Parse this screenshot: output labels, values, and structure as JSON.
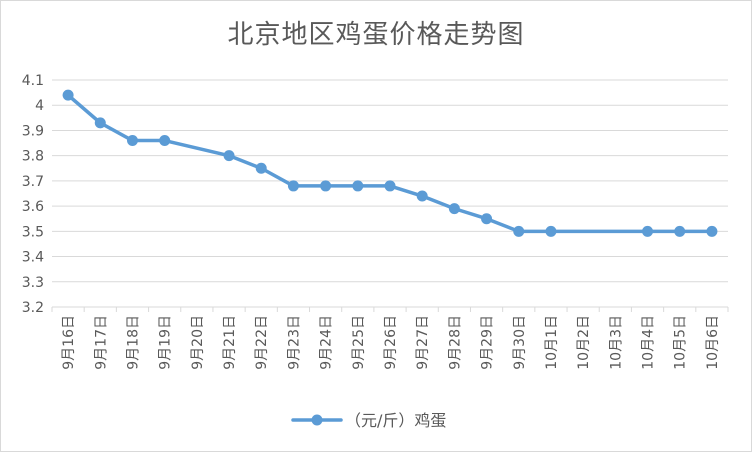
{
  "chart_data": {
    "type": "line",
    "title": "北京地区鸡蛋价格走势图",
    "xlabel": "",
    "ylabel": "",
    "ylim": [
      3.2,
      4.1
    ],
    "yticks": [
      "3.2",
      "3.3",
      "3.4",
      "3.5",
      "3.6",
      "3.7",
      "3.8",
      "3.9",
      "4",
      "4.1"
    ],
    "categories": [
      "9月16日",
      "9月17日",
      "9月18日",
      "9月19日",
      "9月20日",
      "9月21日",
      "9月22日",
      "9月23日",
      "9月24日",
      "9月25日",
      "9月26日",
      "9月27日",
      "9月28日",
      "9月29日",
      "9月30日",
      "10月1日",
      "10月2日",
      "10月3日",
      "10月4日",
      "10月5日",
      "10月6日"
    ],
    "grid": true,
    "legend_position": "bottom",
    "series": [
      {
        "name": "（元/斤）鸡蛋",
        "color": "#5b9bd5",
        "values": [
          4.04,
          3.93,
          3.86,
          3.86,
          null,
          3.8,
          3.75,
          3.68,
          3.68,
          3.68,
          3.68,
          3.64,
          3.59,
          3.55,
          3.5,
          3.5,
          null,
          null,
          3.5,
          3.5,
          3.5
        ]
      }
    ]
  }
}
